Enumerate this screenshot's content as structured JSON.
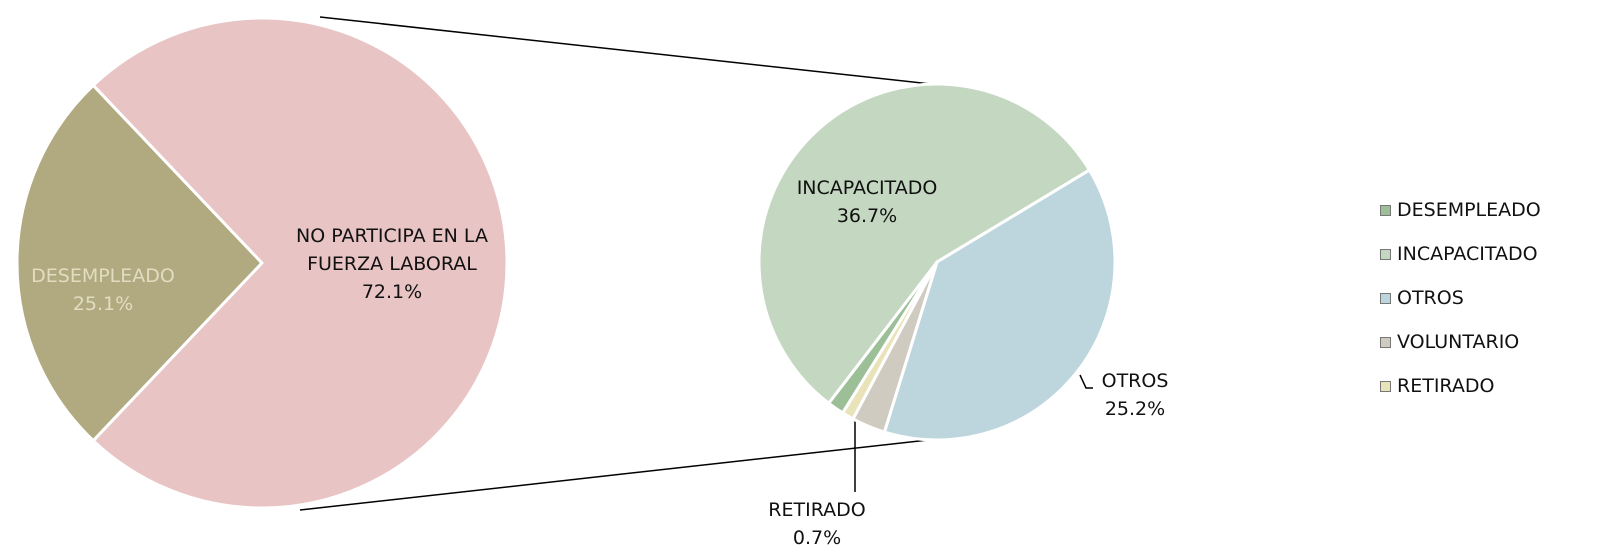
{
  "chart_data": {
    "type": "pie-of-pie",
    "pies": [
      {
        "categories": [
          "DESEMPLEADO",
          "NO PARTICIPA EN LA FUERZA LABORAL"
        ],
        "values": [
          25.1,
          72.1
        ],
        "value_labels": [
          "25.1%",
          "72.1%"
        ],
        "colors": [
          "#b1a97f",
          "#e8c4c4"
        ]
      },
      {
        "categories": [
          "DESEMPLEADO",
          "INCAPACITADO",
          "OTROS",
          "VOLUNTARIO",
          "RETIRADO"
        ],
        "values": [
          1.0,
          36.7,
          25.2,
          2.0,
          0.7
        ],
        "value_labels": [
          null,
          "36.7%",
          "25.2%",
          null,
          "0.7%"
        ],
        "colors": [
          "#9dbf98",
          "#c3d7c1",
          "#bdd5dd",
          "#cfcbc1",
          "#e9e3b9"
        ]
      }
    ],
    "legend": "right"
  }
}
